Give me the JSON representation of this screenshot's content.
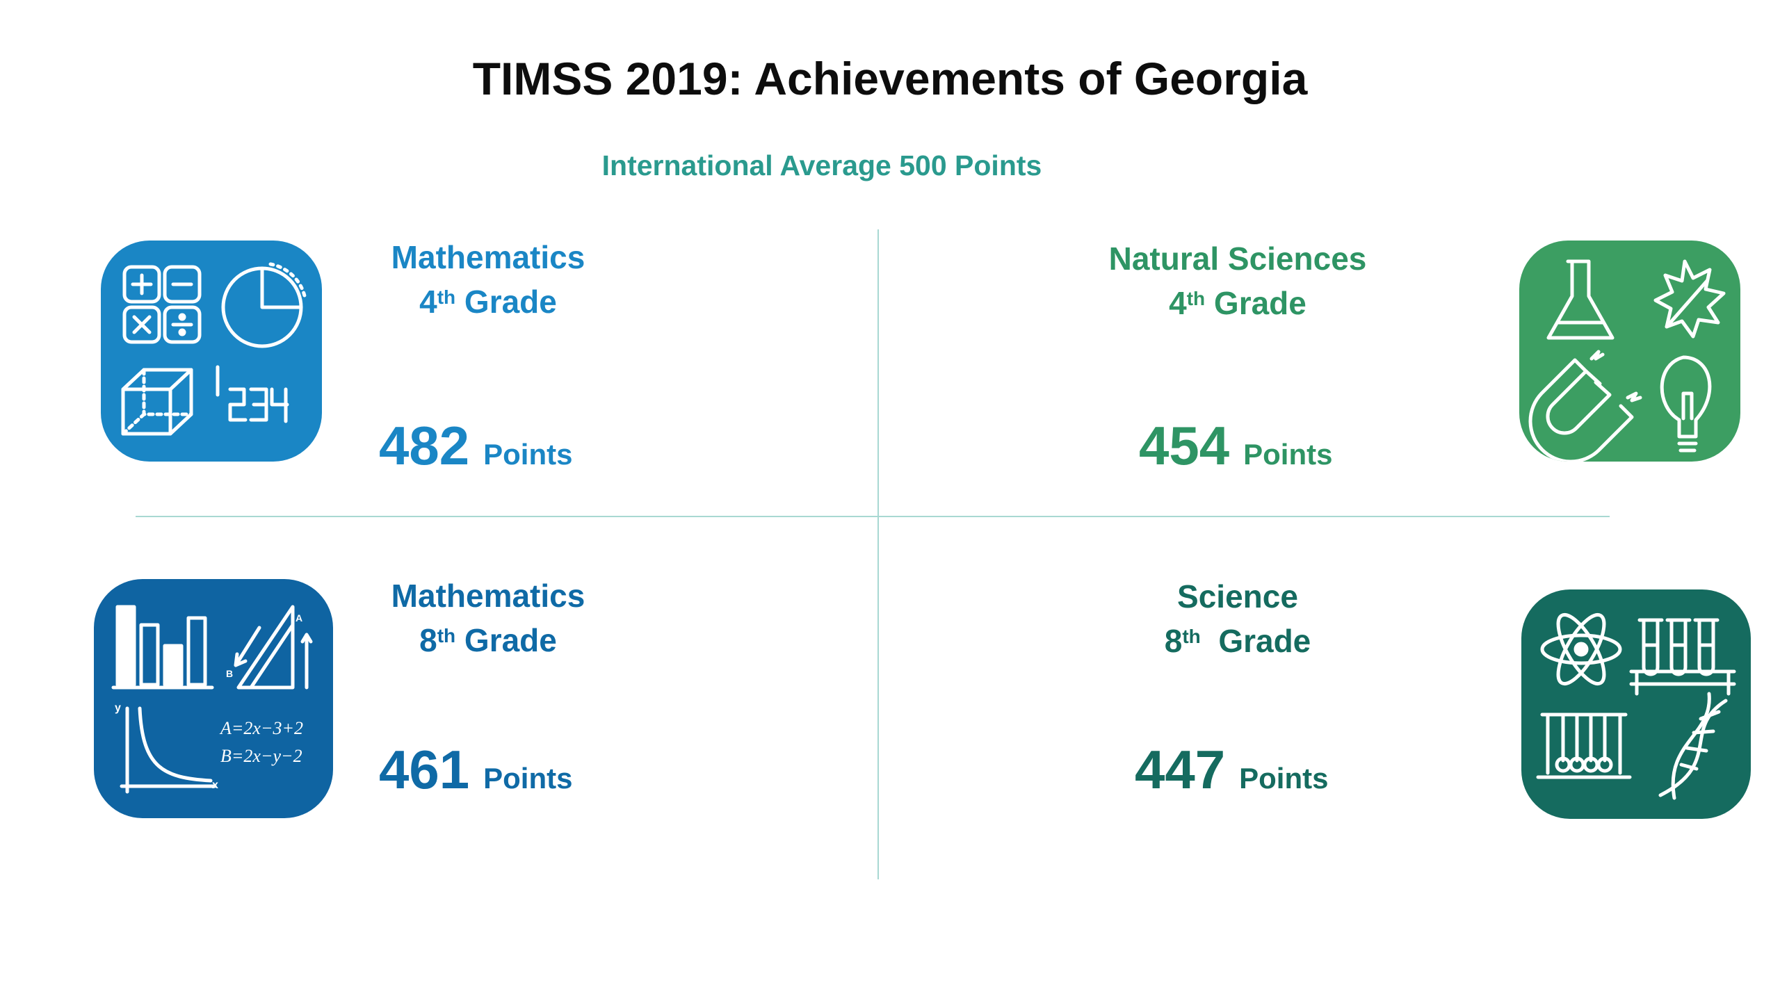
{
  "title": "TIMSS 2019: Achievements of Georgia",
  "subtitle": "International Average 500 Points",
  "colors": {
    "math4": "#1a86c5",
    "math8": "#0f6aa6",
    "natural4": "#2e9464",
    "science8": "#156b5f",
    "divider": "#a8d8d2"
  },
  "panels": {
    "math4": {
      "subject": "Mathematics",
      "grade_num": "4",
      "grade_sup": "th",
      "grade_word": "Grade",
      "score": "482",
      "unit": "Points",
      "icon": "calculator-icon"
    },
    "natural4": {
      "subject": "Natural Sciences",
      "grade_num": "4",
      "grade_sup": "th",
      "grade_word": "Grade",
      "score": "454",
      "unit": "Points",
      "icon": "science-lab-icon"
    },
    "math8": {
      "subject": "Mathematics",
      "grade_num": "8",
      "grade_sup": "th",
      "grade_word": "Grade",
      "score": "461",
      "unit": "Points",
      "icon": "graph-formula-icon"
    },
    "science8": {
      "subject": "Science",
      "grade_num": "8",
      "grade_sup": "th",
      "grade_word": "Grade",
      "score": "447",
      "unit": "Points",
      "icon": "atom-dna-icon"
    }
  },
  "icon_text": {
    "digits": "1234",
    "formula_a": "A=2x−3+2",
    "formula_b": "B=2x−y−2",
    "axis_y": "y",
    "axis_x": "x",
    "label_a": "A",
    "label_b": "B"
  }
}
